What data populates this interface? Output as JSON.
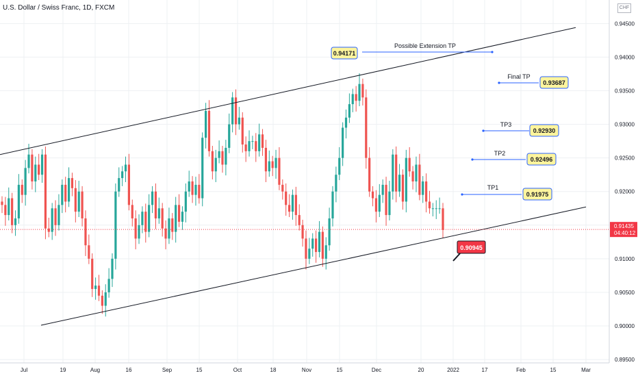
{
  "title": "U.S. Dollar / Swiss Franc, 1D, FXCM",
  "currency": "CHF",
  "colors": {
    "up": "#26a69a",
    "down": "#ef5350",
    "line": "#131722",
    "blue": "#2962ff",
    "label_bg": "#fff59d",
    "current": "#f23645"
  },
  "chart_data": {
    "type": "candlestick",
    "ylim": [
      0.8945,
      0.9485
    ],
    "y_ticks": [
      "0.94500",
      "0.94000",
      "0.93500",
      "0.93000",
      "0.92500",
      "0.92000",
      "0.91500",
      "0.91000",
      "0.90500",
      "0.90000",
      "0.89500"
    ],
    "x_ticks": [
      "Jul",
      "19",
      "Aug",
      "16",
      "Sep",
      "15",
      "Oct",
      "18",
      "Nov",
      "15",
      "Dec",
      "20",
      "2022",
      "17",
      "Feb",
      "15",
      "Mar"
    ],
    "last_price": "0.91435",
    "countdown": "04:40:12",
    "channel_upper": {
      "from": 0.9255,
      "to": 0.9444
    },
    "channel_lower": {
      "from": 0.9001,
      "to": 0.9177
    },
    "annotations": [
      {
        "text": "Possible Extension TP",
        "value": "0.94171"
      },
      {
        "text": "Final TP",
        "value": "0.93687"
      },
      {
        "text": "TP3",
        "value": "0.92930"
      },
      {
        "text": "TP2",
        "value": "0.92496"
      },
      {
        "text": "TP1",
        "value": "0.91975"
      }
    ],
    "low_label": "0.90945",
    "closes": [
      0.918,
      0.9165,
      0.919,
      0.915,
      0.916,
      0.921,
      0.9195,
      0.9235,
      0.9255,
      0.9215,
      0.924,
      0.9225,
      0.9255,
      0.9145,
      0.914,
      0.9175,
      0.915,
      0.918,
      0.921,
      0.9185,
      0.922,
      0.9205,
      0.917,
      0.92,
      0.916,
      0.912,
      0.91,
      0.9055,
      0.906,
      0.9045,
      0.903,
      0.905,
      0.907,
      0.91,
      0.92,
      0.922,
      0.923,
      0.924,
      0.918,
      0.916,
      0.913,
      0.915,
      0.917,
      0.914,
      0.918,
      0.92,
      0.916,
      0.9175,
      0.9145,
      0.913,
      0.916,
      0.914,
      0.918,
      0.9155,
      0.917,
      0.92,
      0.9215,
      0.9195,
      0.921,
      0.919,
      0.928,
      0.932,
      0.926,
      0.923,
      0.925,
      0.926,
      0.924,
      0.9265,
      0.93,
      0.934,
      0.93,
      0.931,
      0.927,
      0.926,
      0.9275,
      0.9275,
      0.926,
      0.9285,
      0.9265,
      0.923,
      0.9245,
      0.9235,
      0.925,
      0.921,
      0.92,
      0.918,
      0.917,
      0.9195,
      0.9165,
      0.915,
      0.913,
      0.91,
      0.9115,
      0.913,
      0.911,
      0.914,
      0.91,
      0.912,
      0.916,
      0.92,
      0.9225,
      0.925,
      0.9295,
      0.931,
      0.933,
      0.9345,
      0.9335,
      0.936,
      0.934,
      0.925,
      0.92,
      0.919,
      0.917,
      0.9195,
      0.921,
      0.9165,
      0.92,
      0.9255,
      0.92,
      0.9225,
      0.9185,
      0.925,
      0.923,
      0.9215,
      0.924,
      0.9195,
      0.9215,
      0.9185,
      0.9175,
      0.9175,
      0.9175,
      0.9175,
      0.9143
    ]
  }
}
